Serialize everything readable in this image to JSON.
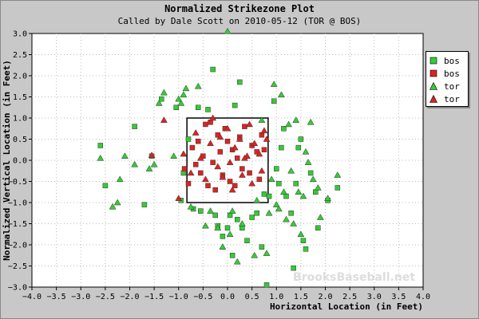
{
  "chart_data": {
    "type": "scatter",
    "title": "Normalized Strikezone Plot",
    "subtitle": "Called by Dale Scott on 2010-05-12 (TOR @ BOS)",
    "xlabel": "Horizontal Location (in Feet)",
    "ylabel": "Normalized Vertical Location (in Feet)",
    "xlim": [
      -4.0,
      4.0
    ],
    "ylim": [
      -3.0,
      3.0
    ],
    "x_ticks": [
      -4.0,
      -3.5,
      -3.0,
      -2.5,
      -2.0,
      -1.5,
      -1.0,
      -0.5,
      0.0,
      0.5,
      1.0,
      1.5,
      2.0,
      2.5,
      3.0,
      3.5,
      4.0
    ],
    "x_tick_labels": [
      "−4.0",
      "−3.5",
      "−3.0",
      "−2.5",
      "−2.0",
      "−1.5",
      "−1.0",
      "−0.5",
      "0.0",
      "0.5",
      "1.0",
      "1.5",
      "2.0",
      "2.5",
      "3.0",
      "3.5",
      "4.0"
    ],
    "y_ticks": [
      3.0,
      2.5,
      2.0,
      1.5,
      1.0,
      0.5,
      0.0,
      -0.5,
      -1.0,
      -1.5,
      -2.0,
      -2.5,
      -3.0
    ],
    "y_tick_labels": [
      "3.0",
      "2.5",
      "2.0",
      "1.5",
      "1.0",
      "0.5",
      "0.0",
      "−0.5",
      "−1.0",
      "−1.5",
      "−2.0",
      "−2.5",
      "−3.0"
    ],
    "grid": "dotted",
    "legend_position": "top-right",
    "strike_zone": {
      "x": [
        -0.83,
        0.83
      ],
      "y": [
        -1.0,
        1.0
      ]
    },
    "watermark": "BrooksBaseball.net",
    "series": [
      {
        "name": "bos",
        "marker": "square",
        "color": "#33cc33",
        "points": [
          [
            -2.6,
            0.35
          ],
          [
            -2.5,
            -0.6
          ],
          [
            -1.9,
            0.8
          ],
          [
            -1.7,
            -1.05
          ],
          [
            -1.55,
            0.1
          ],
          [
            -1.35,
            1.45
          ],
          [
            -1.05,
            1.25
          ],
          [
            -0.95,
            -0.95
          ],
          [
            -0.9,
            -0.3
          ],
          [
            -0.8,
            0.5
          ],
          [
            -0.7,
            -1.15
          ],
          [
            -0.6,
            1.25
          ],
          [
            -0.55,
            -1.2
          ],
          [
            -0.4,
            1.2
          ],
          [
            -0.3,
            2.15
          ],
          [
            -0.25,
            -1.3
          ],
          [
            -0.2,
            -1.55
          ],
          [
            -0.1,
            -1.8
          ],
          [
            0.0,
            -1.6
          ],
          [
            0.05,
            -1.3
          ],
          [
            0.1,
            -2.25
          ],
          [
            0.15,
            1.3
          ],
          [
            0.2,
            -1.4
          ],
          [
            0.25,
            1.85
          ],
          [
            0.3,
            -1.6
          ],
          [
            0.4,
            -1.9
          ],
          [
            0.5,
            -1.35
          ],
          [
            0.6,
            -1.25
          ],
          [
            0.7,
            -2.05
          ],
          [
            0.75,
            -0.8
          ],
          [
            0.8,
            -2.95
          ],
          [
            0.85,
            -0.85
          ],
          [
            0.95,
            1.4
          ],
          [
            1.0,
            -0.2
          ],
          [
            1.05,
            -0.55
          ],
          [
            1.1,
            0.3
          ],
          [
            1.15,
            0.75
          ],
          [
            1.2,
            -0.85
          ],
          [
            1.3,
            -1.25
          ],
          [
            1.35,
            -2.55
          ],
          [
            1.4,
            -0.55
          ],
          [
            1.45,
            0.3
          ],
          [
            1.5,
            0.5
          ],
          [
            1.55,
            -1.9
          ],
          [
            1.6,
            -2.1
          ],
          [
            1.7,
            -0.3
          ],
          [
            1.8,
            -0.75
          ],
          [
            1.85,
            -1.6
          ],
          [
            2.05,
            -0.95
          ],
          [
            2.25,
            -0.65
          ]
        ]
      },
      {
        "name": "bos",
        "marker": "square",
        "color": "#dd2222",
        "points": [
          [
            -0.88,
            -0.2
          ],
          [
            -0.8,
            -0.55
          ],
          [
            -0.72,
            0.3
          ],
          [
            -0.65,
            -0.1
          ],
          [
            -0.6,
            0.45
          ],
          [
            -0.55,
            -0.3
          ],
          [
            -0.5,
            0.1
          ],
          [
            -0.45,
            0.85
          ],
          [
            -0.4,
            -0.6
          ],
          [
            -0.35,
            0.9
          ],
          [
            -0.3,
            -0.05
          ],
          [
            -0.25,
            -0.7
          ],
          [
            -0.2,
            0.6
          ],
          [
            -0.15,
            0.2
          ],
          [
            -0.1,
            -0.35
          ],
          [
            -0.05,
            0.75
          ],
          [
            0.0,
            0.45
          ],
          [
            0.05,
            -0.5
          ],
          [
            0.1,
            0.25
          ],
          [
            0.15,
            -0.6
          ],
          [
            0.2,
            0.05
          ],
          [
            0.25,
            0.55
          ],
          [
            0.3,
            -0.2
          ],
          [
            0.35,
            0.8
          ],
          [
            0.45,
            -0.3
          ],
          [
            0.5,
            0.35
          ],
          [
            0.6,
            0.2
          ],
          [
            0.65,
            -0.45
          ],
          [
            0.7,
            0.6
          ],
          [
            0.75,
            0.25
          ]
        ]
      },
      {
        "name": "tor",
        "marker": "triangle",
        "color": "#33cc33",
        "points": [
          [
            -2.6,
            0.05
          ],
          [
            -2.35,
            -1.1
          ],
          [
            -2.25,
            -1.0
          ],
          [
            -2.2,
            -0.45
          ],
          [
            -2.1,
            0.1
          ],
          [
            -1.9,
            -0.1
          ],
          [
            -1.6,
            -0.2
          ],
          [
            -1.5,
            -0.1
          ],
          [
            -1.4,
            1.35
          ],
          [
            -1.3,
            1.6
          ],
          [
            -1.1,
            0.1
          ],
          [
            -1.0,
            1.45
          ],
          [
            -0.95,
            1.35
          ],
          [
            -0.9,
            1.55
          ],
          [
            -0.85,
            1.7
          ],
          [
            -0.75,
            -1.1
          ],
          [
            -0.6,
            1.75
          ],
          [
            -0.45,
            -1.55
          ],
          [
            -0.35,
            -1.2
          ],
          [
            -0.2,
            -1.6
          ],
          [
            -0.1,
            -2.05
          ],
          [
            0.05,
            -1.75
          ],
          [
            0.1,
            -1.2
          ],
          [
            0.2,
            -2.4
          ],
          [
            0.3,
            -1.5
          ],
          [
            0.55,
            -2.25
          ],
          [
            0.6,
            -0.95
          ],
          [
            0.7,
            0.95
          ],
          [
            0.8,
            -2.2
          ],
          [
            0.85,
            -1.25
          ],
          [
            0.9,
            -0.45
          ],
          [
            0.95,
            1.8
          ],
          [
            1.0,
            -1.05
          ],
          [
            1.05,
            -1.15
          ],
          [
            1.1,
            1.55
          ],
          [
            1.15,
            -0.75
          ],
          [
            1.2,
            -1.4
          ],
          [
            1.25,
            0.85
          ],
          [
            1.3,
            -0.25
          ],
          [
            1.35,
            -1.5
          ],
          [
            1.4,
            0.95
          ],
          [
            1.45,
            -0.75
          ],
          [
            1.5,
            -1.75
          ],
          [
            1.55,
            -0.85
          ],
          [
            1.6,
            0.2
          ],
          [
            1.65,
            -0.05
          ],
          [
            1.7,
            0.9
          ],
          [
            1.75,
            -0.45
          ],
          [
            1.85,
            -0.65
          ],
          [
            1.9,
            -1.35
          ],
          [
            2.05,
            -0.9
          ],
          [
            2.25,
            -0.35
          ],
          [
            0.0,
            3.05
          ]
        ]
      },
      {
        "name": "tor",
        "marker": "triangle",
        "color": "#dd2222",
        "points": [
          [
            -1.55,
            0.12
          ],
          [
            -1.3,
            0.95
          ],
          [
            -1.0,
            -0.9
          ],
          [
            -0.9,
            0.15
          ],
          [
            -0.75,
            -0.3
          ],
          [
            -0.65,
            0.65
          ],
          [
            -0.55,
            0.05
          ],
          [
            -0.45,
            -0.45
          ],
          [
            -0.3,
            1.0
          ],
          [
            -0.2,
            -0.15
          ],
          [
            -0.15,
            0.55
          ],
          [
            -0.1,
            -0.4
          ],
          [
            0.0,
            0.75
          ],
          [
            0.05,
            -0.05
          ],
          [
            0.1,
            -0.7
          ],
          [
            0.15,
            0.3
          ],
          [
            0.25,
            0.5
          ],
          [
            0.3,
            -0.35
          ],
          [
            0.4,
            0.1
          ],
          [
            0.45,
            0.85
          ],
          [
            0.5,
            -0.55
          ],
          [
            0.55,
            0.4
          ],
          [
            0.65,
            0.15
          ],
          [
            0.7,
            -0.25
          ],
          [
            0.75,
            0.7
          ],
          [
            0.8,
            0.5
          ],
          [
            -0.35,
            0.4
          ],
          [
            0.35,
            0.05
          ]
        ]
      }
    ]
  }
}
